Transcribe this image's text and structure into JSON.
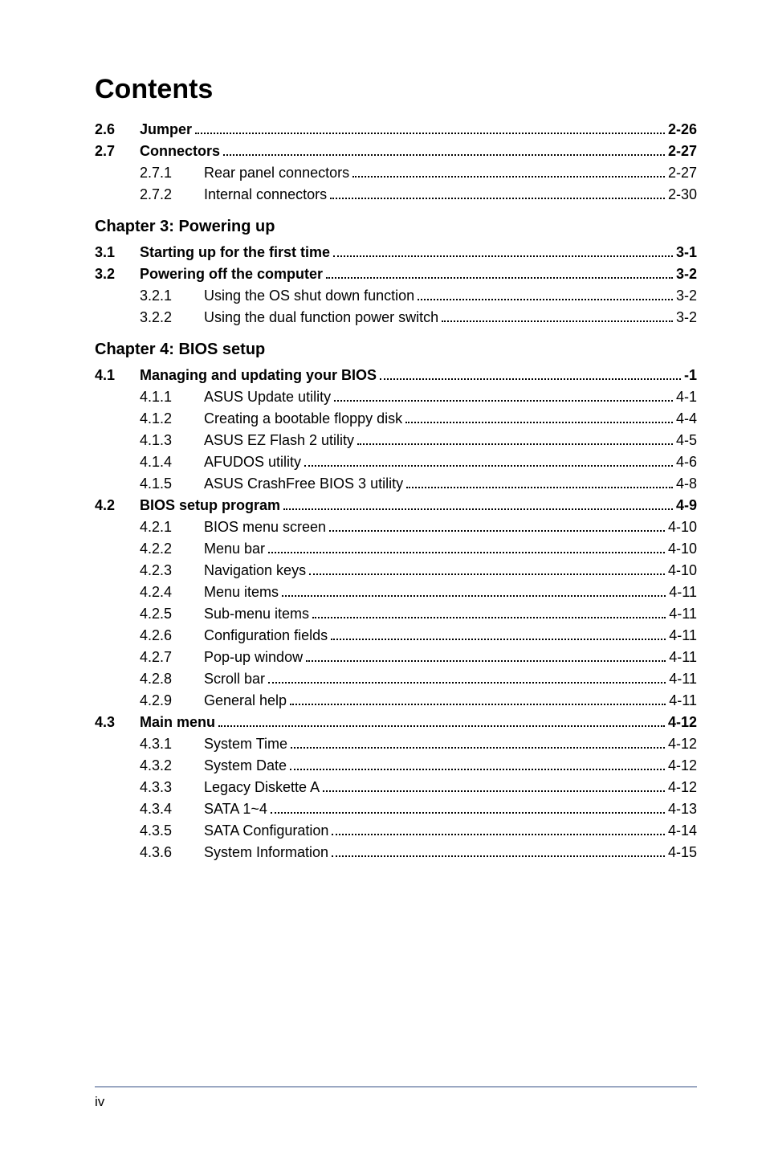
{
  "title": "Contents",
  "footer_page": "iv",
  "colors": {
    "text": "#000000",
    "background": "#ffffff",
    "footer_line": "#9aa7c2"
  },
  "typography": {
    "title_fontsize": 34,
    "body_fontsize": 18,
    "chapter_fontsize": 20,
    "footer_fontsize": 17,
    "font_family": "Arial, Helvetica, sans-serif"
  },
  "sections": [
    {
      "type": "level1",
      "num": "2.6",
      "label": "Jumper",
      "page": "2-26"
    },
    {
      "type": "level1",
      "num": "2.7",
      "label": "Connectors",
      "page": "2-27"
    },
    {
      "type": "level2",
      "num": "2.7.1",
      "label": "Rear panel connectors",
      "page": "2-27"
    },
    {
      "type": "level2",
      "num": "2.7.2",
      "label": "Internal connectors",
      "page": "2-30"
    },
    {
      "type": "chapter_title",
      "label": "Chapter 3: Powering up"
    },
    {
      "type": "level1",
      "num": "3.1",
      "label": "Starting up for the first time",
      "page": "3-1"
    },
    {
      "type": "level1",
      "num": "3.2",
      "label": "Powering off the computer",
      "page": "3-2"
    },
    {
      "type": "level2",
      "num": "3.2.1",
      "label": "Using the OS shut down function",
      "page": "3-2"
    },
    {
      "type": "level2",
      "num": "3.2.2",
      "label": "Using the dual function power switch",
      "page": "3-2"
    },
    {
      "type": "chapter_title",
      "label": "Chapter 4: BIOS setup"
    },
    {
      "type": "level1",
      "num": "4.1",
      "label": "Managing and updating your BIOS",
      "page": "-1"
    },
    {
      "type": "level2",
      "num": "4.1.1",
      "label": "ASUS Update utility",
      "page": "4-1"
    },
    {
      "type": "level2",
      "num": "4.1.2",
      "label": "Creating a bootable floppy disk",
      "page": "4-4"
    },
    {
      "type": "level2",
      "num": "4.1.3",
      "label": "ASUS EZ Flash 2 utility",
      "page": "4-5"
    },
    {
      "type": "level2",
      "num": "4.1.4",
      "label": "AFUDOS utility",
      "page": "4-6"
    },
    {
      "type": "level2",
      "num": "4.1.5",
      "label": "ASUS CrashFree BIOS 3 utility",
      "page": "4-8"
    },
    {
      "type": "level1",
      "num": "4.2",
      "label": "BIOS setup program",
      "page": "4-9"
    },
    {
      "type": "level2",
      "num": "4.2.1",
      "label": "BIOS menu screen",
      "page": "4-10"
    },
    {
      "type": "level2",
      "num": "4.2.2",
      "label": "Menu bar",
      "page": "4-10"
    },
    {
      "type": "level2",
      "num": "4.2.3",
      "label": "Navigation keys",
      "page": "4-10"
    },
    {
      "type": "level2",
      "num": "4.2.4",
      "label": "Menu items",
      "page": "4-11"
    },
    {
      "type": "level2",
      "num": "4.2.5",
      "label": "Sub-menu items",
      "page": "4-11"
    },
    {
      "type": "level2",
      "num": "4.2.6",
      "label": "Configuration fields",
      "page": "4-11"
    },
    {
      "type": "level2",
      "num": "4.2.7",
      "label": "Pop-up window",
      "page": "4-11"
    },
    {
      "type": "level2",
      "num": "4.2.8",
      "label": "Scroll bar",
      "page": "4-11"
    },
    {
      "type": "level2",
      "num": "4.2.9",
      "label": "General help",
      "page": "4-11"
    },
    {
      "type": "level1",
      "num": "4.3",
      "label": "Main menu",
      "page": "4-12"
    },
    {
      "type": "level2",
      "num": "4.3.1",
      "label": "System Time",
      "page": "4-12"
    },
    {
      "type": "level2",
      "num": "4.3.2",
      "label": "System Date",
      "page": "4-12"
    },
    {
      "type": "level2",
      "num": "4.3.3",
      "label": "Legacy Diskette A",
      "page": "4-12"
    },
    {
      "type": "level2",
      "num": "4.3.4",
      "label": "SATA 1~4",
      "page": "4-13"
    },
    {
      "type": "level2",
      "num": "4.3.5",
      "label": "SATA Configuration",
      "page": "4-14"
    },
    {
      "type": "level2",
      "num": "4.3.6",
      "label": "System Information",
      "page": "4-15"
    }
  ]
}
